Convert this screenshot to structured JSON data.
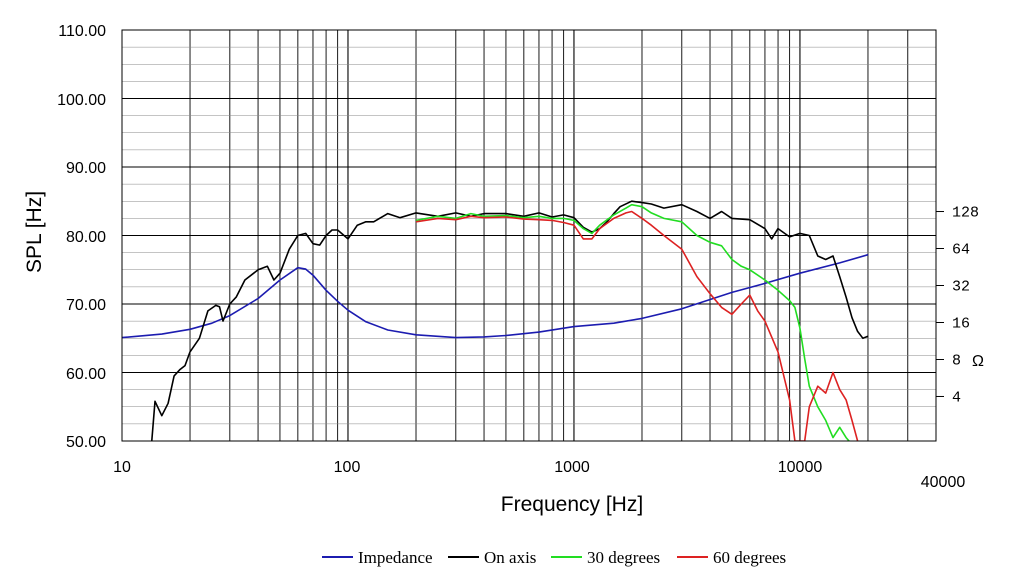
{
  "chart_data": {
    "type": "line",
    "xlabel": "Frequency [Hz]",
    "ylabel": "SPL [Hz]",
    "x_scale": "log",
    "xlim": [
      10,
      40000
    ],
    "ylim": [
      50,
      110
    ],
    "grid": true,
    "legend_placement": "bottom",
    "x_ticks": [
      "10",
      "100",
      "1000",
      "10000",
      "40000"
    ],
    "y_ticks": [
      "50.00",
      "60.00",
      "70.00",
      "80.00",
      "90.00",
      "100.00",
      "110.00"
    ],
    "right_axis": {
      "unit_label": "Ω",
      "scale": "log",
      "ticks": [
        "4",
        "8",
        "16",
        "32",
        "64",
        "128"
      ],
      "tick_values": [
        4,
        8,
        16,
        32,
        64,
        128
      ],
      "spl_at_tick_4": 56.5,
      "spl_per_octave": 5.4
    },
    "series": [
      {
        "name": "Impedance",
        "color": "#1c1cb0",
        "points": [
          [
            10,
            65.1
          ],
          [
            15,
            65.6
          ],
          [
            20,
            66.3
          ],
          [
            25,
            67.2
          ],
          [
            30,
            68.3
          ],
          [
            40,
            70.8
          ],
          [
            50,
            73.5
          ],
          [
            60,
            75.3
          ],
          [
            65,
            75.1
          ],
          [
            70,
            74.2
          ],
          [
            80,
            72
          ],
          [
            90,
            70.4
          ],
          [
            100,
            69.1
          ],
          [
            120,
            67.4
          ],
          [
            150,
            66.2
          ],
          [
            200,
            65.5
          ],
          [
            300,
            65.1
          ],
          [
            400,
            65.2
          ],
          [
            500,
            65.4
          ],
          [
            700,
            65.9
          ],
          [
            1000,
            66.7
          ],
          [
            1500,
            67.2
          ],
          [
            2000,
            67.9
          ],
          [
            3000,
            69.3
          ],
          [
            5000,
            71.7
          ],
          [
            7000,
            73
          ],
          [
            10000,
            74.5
          ],
          [
            15000,
            76
          ],
          [
            20000,
            77.2
          ]
        ]
      },
      {
        "name": "On axis",
        "color": "#000000",
        "points": [
          [
            13.5,
            49.5
          ],
          [
            14,
            55.8
          ],
          [
            15,
            53.7
          ],
          [
            16,
            55.5
          ],
          [
            17,
            59.5
          ],
          [
            18,
            60.4
          ],
          [
            19,
            61
          ],
          [
            20,
            63
          ],
          [
            22,
            65
          ],
          [
            24,
            69
          ],
          [
            26,
            69.8
          ],
          [
            27,
            69.6
          ],
          [
            28,
            67.5
          ],
          [
            30,
            70
          ],
          [
            32,
            71
          ],
          [
            35,
            73.5
          ],
          [
            40,
            75
          ],
          [
            44,
            75.5
          ],
          [
            47,
            73.5
          ],
          [
            50,
            74.5
          ],
          [
            55,
            78
          ],
          [
            60,
            80
          ],
          [
            65,
            80.3
          ],
          [
            70,
            78.8
          ],
          [
            75,
            78.6
          ],
          [
            80,
            80
          ],
          [
            85,
            80.8
          ],
          [
            90,
            80.8
          ],
          [
            100,
            79.5
          ],
          [
            110,
            81.5
          ],
          [
            120,
            82
          ],
          [
            130,
            82
          ],
          [
            150,
            83.2
          ],
          [
            170,
            82.6
          ],
          [
            200,
            83.3
          ],
          [
            250,
            82.8
          ],
          [
            300,
            83.3
          ],
          [
            350,
            82.8
          ],
          [
            400,
            83.2
          ],
          [
            500,
            83.2
          ],
          [
            600,
            82.8
          ],
          [
            700,
            83.3
          ],
          [
            800,
            82.7
          ],
          [
            900,
            83
          ],
          [
            1000,
            82.6
          ],
          [
            1100,
            81.2
          ],
          [
            1200,
            80.5
          ],
          [
            1300,
            81
          ],
          [
            1400,
            82
          ],
          [
            1500,
            83.2
          ],
          [
            1600,
            84.2
          ],
          [
            1800,
            85
          ],
          [
            2000,
            84.8
          ],
          [
            2200,
            84.6
          ],
          [
            2500,
            84
          ],
          [
            3000,
            84.5
          ],
          [
            3500,
            83.5
          ],
          [
            4000,
            82.5
          ],
          [
            4500,
            83.5
          ],
          [
            5000,
            82.5
          ],
          [
            6000,
            82.3
          ],
          [
            7000,
            81
          ],
          [
            7500,
            79.5
          ],
          [
            8000,
            81
          ],
          [
            9000,
            79.8
          ],
          [
            10000,
            80.3
          ],
          [
            11000,
            80
          ],
          [
            12000,
            77
          ],
          [
            13000,
            76.5
          ],
          [
            14000,
            77
          ],
          [
            15000,
            74
          ],
          [
            16000,
            71
          ],
          [
            17000,
            68
          ],
          [
            18000,
            66
          ],
          [
            19000,
            65
          ],
          [
            20000,
            65.3
          ]
        ]
      },
      {
        "name": "30 degrees",
        "color": "#22dd22",
        "points": [
          [
            200,
            82.2
          ],
          [
            250,
            82.8
          ],
          [
            300,
            82.5
          ],
          [
            350,
            83.2
          ],
          [
            400,
            82.8
          ],
          [
            500,
            82.9
          ],
          [
            600,
            82.6
          ],
          [
            700,
            82.8
          ],
          [
            800,
            82.5
          ],
          [
            900,
            82.5
          ],
          [
            1000,
            82.2
          ],
          [
            1100,
            81
          ],
          [
            1200,
            80.3
          ],
          [
            1300,
            81.5
          ],
          [
            1500,
            83
          ],
          [
            1700,
            84
          ],
          [
            1800,
            84.5
          ],
          [
            2000,
            84.2
          ],
          [
            2200,
            83.3
          ],
          [
            2500,
            82.5
          ],
          [
            3000,
            82
          ],
          [
            3500,
            80
          ],
          [
            4000,
            79
          ],
          [
            4500,
            78.5
          ],
          [
            5000,
            76.5
          ],
          [
            5500,
            75.5
          ],
          [
            6000,
            75
          ],
          [
            7000,
            73.5
          ],
          [
            8000,
            72
          ],
          [
            9000,
            70.5
          ],
          [
            9500,
            69.5
          ],
          [
            10000,
            66.5
          ],
          [
            10500,
            62
          ],
          [
            11000,
            58
          ],
          [
            12000,
            55
          ],
          [
            13000,
            53
          ],
          [
            14000,
            50.5
          ],
          [
            15000,
            52
          ],
          [
            16000,
            50.5
          ],
          [
            17000,
            49.5
          ]
        ]
      },
      {
        "name": "60 degrees",
        "color": "#dd2222",
        "points": [
          [
            200,
            82
          ],
          [
            250,
            82.5
          ],
          [
            300,
            82.3
          ],
          [
            350,
            82.8
          ],
          [
            400,
            82.6
          ],
          [
            500,
            82.7
          ],
          [
            600,
            82.4
          ],
          [
            700,
            82.3
          ],
          [
            800,
            82.2
          ],
          [
            900,
            81.9
          ],
          [
            1000,
            81.5
          ],
          [
            1100,
            79.5
          ],
          [
            1200,
            79.5
          ],
          [
            1300,
            81
          ],
          [
            1500,
            82.5
          ],
          [
            1700,
            83.3
          ],
          [
            1800,
            83.5
          ],
          [
            2000,
            82.5
          ],
          [
            2200,
            81.5
          ],
          [
            2500,
            80
          ],
          [
            3000,
            78
          ],
          [
            3500,
            74
          ],
          [
            4000,
            71.5
          ],
          [
            4500,
            69.5
          ],
          [
            5000,
            68.5
          ],
          [
            5500,
            70
          ],
          [
            6000,
            71.3
          ],
          [
            6500,
            69
          ],
          [
            7000,
            67.5
          ],
          [
            8000,
            63
          ],
          [
            9000,
            56
          ],
          [
            9500,
            50
          ],
          [
            10500,
            50
          ],
          [
            11000,
            55
          ],
          [
            12000,
            58
          ],
          [
            13000,
            57
          ],
          [
            14000,
            60
          ],
          [
            15000,
            57.5
          ],
          [
            16000,
            56
          ],
          [
            17000,
            53
          ],
          [
            18000,
            50
          ]
        ]
      }
    ]
  }
}
